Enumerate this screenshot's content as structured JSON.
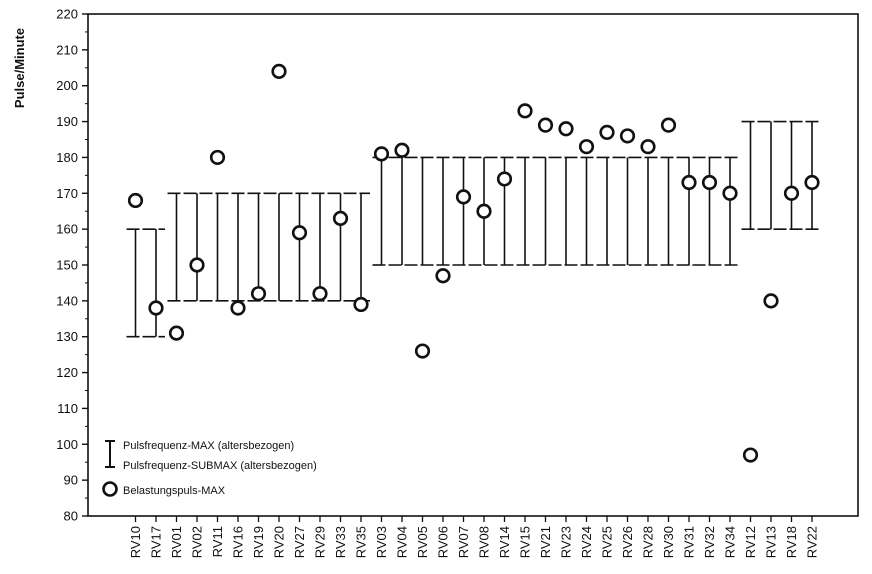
{
  "chart_data": {
    "type": "scatter",
    "title": "",
    "ylabel": "Pulse/Minute",
    "xlabel": "",
    "ylim": [
      80,
      220
    ],
    "yticks": [
      80,
      90,
      100,
      110,
      120,
      130,
      140,
      150,
      160,
      170,
      180,
      190,
      200,
      210,
      220
    ],
    "categories": [
      "RV10",
      "RV17",
      "RV01",
      "RV02",
      "RV11",
      "RV16",
      "RV19",
      "RV20",
      "RV27",
      "RV29",
      "RV33",
      "RV35",
      "RV03",
      "RV04",
      "RV05",
      "RV06",
      "RV07",
      "RV08",
      "RV14",
      "RV15",
      "RV21",
      "RV23",
      "RV24",
      "RV25",
      "RV26",
      "RV28",
      "RV30",
      "RV31",
      "RV32",
      "RV34",
      "RV12",
      "RV13",
      "RV18",
      "RV22"
    ],
    "series": [
      {
        "name": "Pulsfrequenz-MAX (altersbezogen)",
        "values": [
          160,
          160,
          170,
          170,
          170,
          170,
          170,
          170,
          170,
          170,
          170,
          170,
          180,
          180,
          180,
          180,
          180,
          180,
          180,
          180,
          180,
          180,
          180,
          180,
          180,
          180,
          180,
          180,
          180,
          180,
          190,
          190,
          190,
          190
        ]
      },
      {
        "name": "Pulsfrequenz-SUBMAX (altersbezogen)",
        "values": [
          130,
          130,
          140,
          140,
          140,
          140,
          140,
          140,
          140,
          140,
          140,
          140,
          150,
          150,
          150,
          150,
          150,
          150,
          150,
          150,
          150,
          150,
          150,
          150,
          150,
          150,
          150,
          150,
          150,
          150,
          160,
          160,
          160,
          160
        ]
      },
      {
        "name": "Belastungspuls-MAX",
        "values": [
          168,
          138,
          131,
          150,
          180,
          138,
          142,
          204,
          159,
          142,
          163,
          139,
          181,
          182,
          126,
          147,
          169,
          165,
          174,
          193,
          189,
          188,
          183,
          187,
          186,
          183,
          189,
          173,
          173,
          170,
          97,
          140,
          170,
          173
        ]
      }
    ],
    "legend": {
      "placement": "bottom-left",
      "entries": [
        "Pulsfrequenz-MAX (altersbezogen)",
        "Pulsfrequenz-SUBMAX (altersbezogen)",
        "Belastungspuls-MAX"
      ]
    },
    "grid": false
  },
  "colors": {
    "ink": "#111111",
    "background": "#ffffff"
  }
}
